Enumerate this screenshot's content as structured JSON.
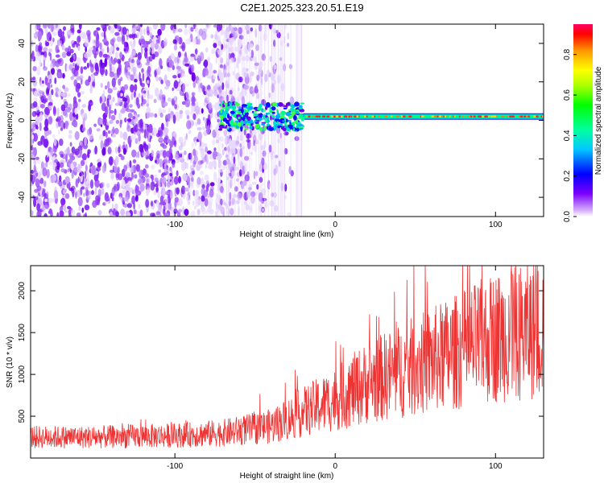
{
  "title": "C2E1.2025.323.20.51.E19",
  "colors": {
    "snr_line": "#ee3333",
    "axes": "#000000"
  },
  "chart_data": [
    {
      "type": "heatmap",
      "title": "C2E1.2025.323.20.51.E19",
      "xlabel": "Height of straight line (km)",
      "ylabel": "Frequency (Hz)",
      "xlim": [
        -190,
        130
      ],
      "ylim": [
        -50,
        50
      ],
      "x_ticks": [
        -100,
        0,
        100
      ],
      "y_ticks": [
        -40,
        -20,
        0,
        20,
        40
      ],
      "x_tick_labels": [
        "-100",
        "0",
        "100"
      ],
      "y_tick_labels": [
        "-40",
        "-20",
        "0",
        "20",
        "40"
      ],
      "colorbar": {
        "label": "Normalized spectral amplitude",
        "range": [
          0,
          0.95
        ],
        "ticks": [
          0.0,
          0.2,
          0.4,
          0.6,
          0.8
        ],
        "tick_labels": [
          "0.0",
          "0.2",
          "0.4",
          "0.6",
          "0.8"
        ]
      },
      "features": {
        "noise_region_x": [
          -190,
          -25
        ],
        "noise_density_decay_start_x": -75,
        "signal_line_frequency_hz": 2,
        "signal_start_x": -72,
        "turbulent_segment_x": [
          -72,
          -20
        ],
        "strong_segment_x": [
          -20,
          130
        ]
      }
    },
    {
      "type": "line",
      "xlabel": "Height of straight line (km)",
      "ylabel": "SNR (10 * v/v)",
      "xlim": [
        -190,
        130
      ],
      "ylim": [
        0,
        2300
      ],
      "x_ticks": [
        -100,
        0,
        100
      ],
      "y_ticks": [
        500,
        1000,
        1500,
        2000
      ],
      "x_tick_labels": [
        "-100",
        "0",
        "100"
      ],
      "y_tick_labels": [
        "500",
        "1000",
        "1500",
        "2000"
      ],
      "series": [
        {
          "name": "SNR",
          "trend_x": [
            -190,
            -150,
            -100,
            -70,
            -40,
            -20,
            0,
            20,
            50,
            80,
            100,
            130
          ],
          "trend_y": [
            250,
            250,
            270,
            300,
            380,
            550,
            700,
            900,
            1100,
            1300,
            1450,
            1550
          ],
          "peak_value": 2200
        }
      ]
    }
  ]
}
